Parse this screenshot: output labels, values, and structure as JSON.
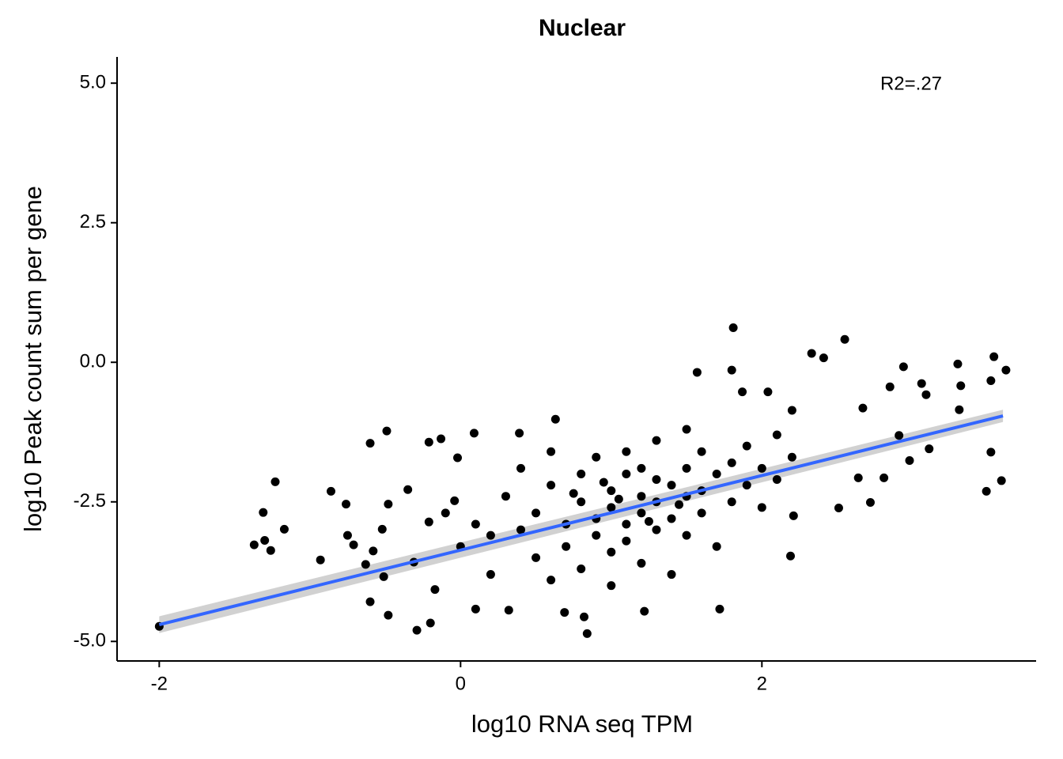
{
  "chart_data": {
    "type": "scatter",
    "title": "Nuclear",
    "x_label": "log10 RNA seq TPM",
    "y_label": "log10 Peak count sum per gene",
    "annotation": "R2=.27",
    "color": "#000000",
    "x": [
      -2,
      -1.37,
      -1.3,
      -1.26,
      -1.23,
      -1.31,
      -1.17,
      -0.93,
      -0.86,
      -0.76,
      -0.75,
      -0.71,
      -0.6,
      -0.6,
      -0.49,
      -0.48,
      -0.52,
      -0.51,
      -0.48,
      -0.63,
      -0.58,
      -0.35,
      -0.31,
      -0.29,
      -0.2,
      -0.21,
      -0.13,
      -0.02,
      0.09,
      0.39,
      0.63,
      -0.04,
      -0.21,
      -0.17,
      0.1,
      0.32,
      0.69,
      0.82,
      0.84,
      1.22,
      1.72,
      1.57,
      1.8,
      1.81,
      2.33,
      2.55,
      2.41,
      2.94,
      3.3,
      3.54,
      3.62,
      3.52,
      3.32,
      3.09,
      3.06,
      2.85,
      3.31,
      2.91,
      3.11,
      2.98,
      2.81,
      2.64,
      2.72,
      3.52,
      3.59,
      3.49,
      2.19,
      2.51,
      2.21,
      1.87,
      2.04,
      2.2,
      2.67,
      0.3,
      0.4,
      0.5,
      0.5,
      0.6,
      0.6,
      0.7,
      0.7,
      0.8,
      0.8,
      0.8,
      0.9,
      0.9,
      0.9,
      1.0,
      1.0,
      1.0,
      1.0,
      1.1,
      1.1,
      1.1,
      1.1,
      1.2,
      1.2,
      1.2,
      1.3,
      1.3,
      1.3,
      1.3,
      1.4,
      1.4,
      1.4,
      1.5,
      1.5,
      1.5,
      1.6,
      1.6,
      1.6,
      1.7,
      1.7,
      1.8,
      1.8,
      1.9,
      1.9,
      2.0,
      2.0,
      2.1,
      2.1,
      2.2,
      0.2,
      0.1,
      0.0,
      -0.1,
      0.2,
      0.4,
      0.6,
      1.2,
      1.5,
      0.75,
      1.05,
      1.25,
      0.95,
      1.45
    ],
    "values": [
      -4.73,
      -3.27,
      -3.19,
      -3.37,
      -2.14,
      -2.69,
      -2.99,
      -3.54,
      -2.31,
      -2.54,
      -3.1,
      -3.27,
      -4.29,
      -1.45,
      -1.23,
      -2.54,
      -2.99,
      -3.84,
      -4.53,
      -3.62,
      -3.38,
      -2.28,
      -3.58,
      -4.8,
      -4.67,
      -1.43,
      -1.37,
      -1.71,
      -1.27,
      -1.27,
      -1.02,
      -2.48,
      -2.86,
      -4.07,
      -4.42,
      -4.44,
      -4.48,
      -4.56,
      -4.86,
      -4.46,
      -4.42,
      -0.18,
      -0.14,
      0.62,
      0.16,
      0.41,
      0.08,
      -0.08,
      -0.03,
      0.1,
      -0.14,
      -0.33,
      -0.42,
      -0.58,
      -0.38,
      -0.44,
      -0.85,
      -1.31,
      -1.55,
      -1.76,
      -2.07,
      -2.07,
      -2.51,
      -1.61,
      -2.12,
      -2.31,
      -3.47,
      -2.61,
      -2.75,
      -0.53,
      -0.53,
      -0.86,
      -0.82,
      -2.4,
      -3.0,
      -2.7,
      -3.5,
      -2.2,
      -3.9,
      -2.9,
      -3.3,
      -2.5,
      -2.0,
      -3.7,
      -2.8,
      -3.1,
      -1.7,
      -2.3,
      -2.6,
      -3.4,
      -4.0,
      -2.0,
      -2.9,
      -3.2,
      -1.6,
      -2.4,
      -2.7,
      -3.6,
      -2.1,
      -2.5,
      -3.0,
      -1.4,
      -2.2,
      -2.8,
      -3.8,
      -1.9,
      -2.4,
      -3.1,
      -1.6,
      -2.3,
      -2.7,
      -2.0,
      -3.3,
      -1.8,
      -2.5,
      -1.5,
      -2.2,
      -1.9,
      -2.6,
      -1.3,
      -2.1,
      -1.7,
      -3.1,
      -2.9,
      -3.3,
      -2.7,
      -3.8,
      -1.9,
      -1.6,
      -1.9,
      -1.2,
      -2.35,
      -2.45,
      -2.85,
      -2.15,
      -2.55
    ],
    "fit": {
      "color": "#3366ff",
      "band_color": "#cccccc",
      "x": [
        -2,
        3.6
      ],
      "y": [
        -4.7,
        -0.96
      ],
      "lower": [
        -4.85,
        -1.07
      ],
      "upper": [
        -4.55,
        -0.85
      ]
    },
    "xlim": [
      -2.28,
      3.82
    ],
    "ylim": [
      -5.35,
      5.47
    ],
    "xticks": [
      -2,
      0,
      2
    ],
    "yticks": [
      {
        "value": 5,
        "label": "5.0"
      },
      {
        "value": 2.5,
        "label": "2.5"
      },
      {
        "value": 0,
        "label": "0.0"
      },
      {
        "value": -2.5,
        "label": "-2.5"
      },
      {
        "value": -5,
        "label": "-5.0"
      }
    ],
    "grid": false
  }
}
